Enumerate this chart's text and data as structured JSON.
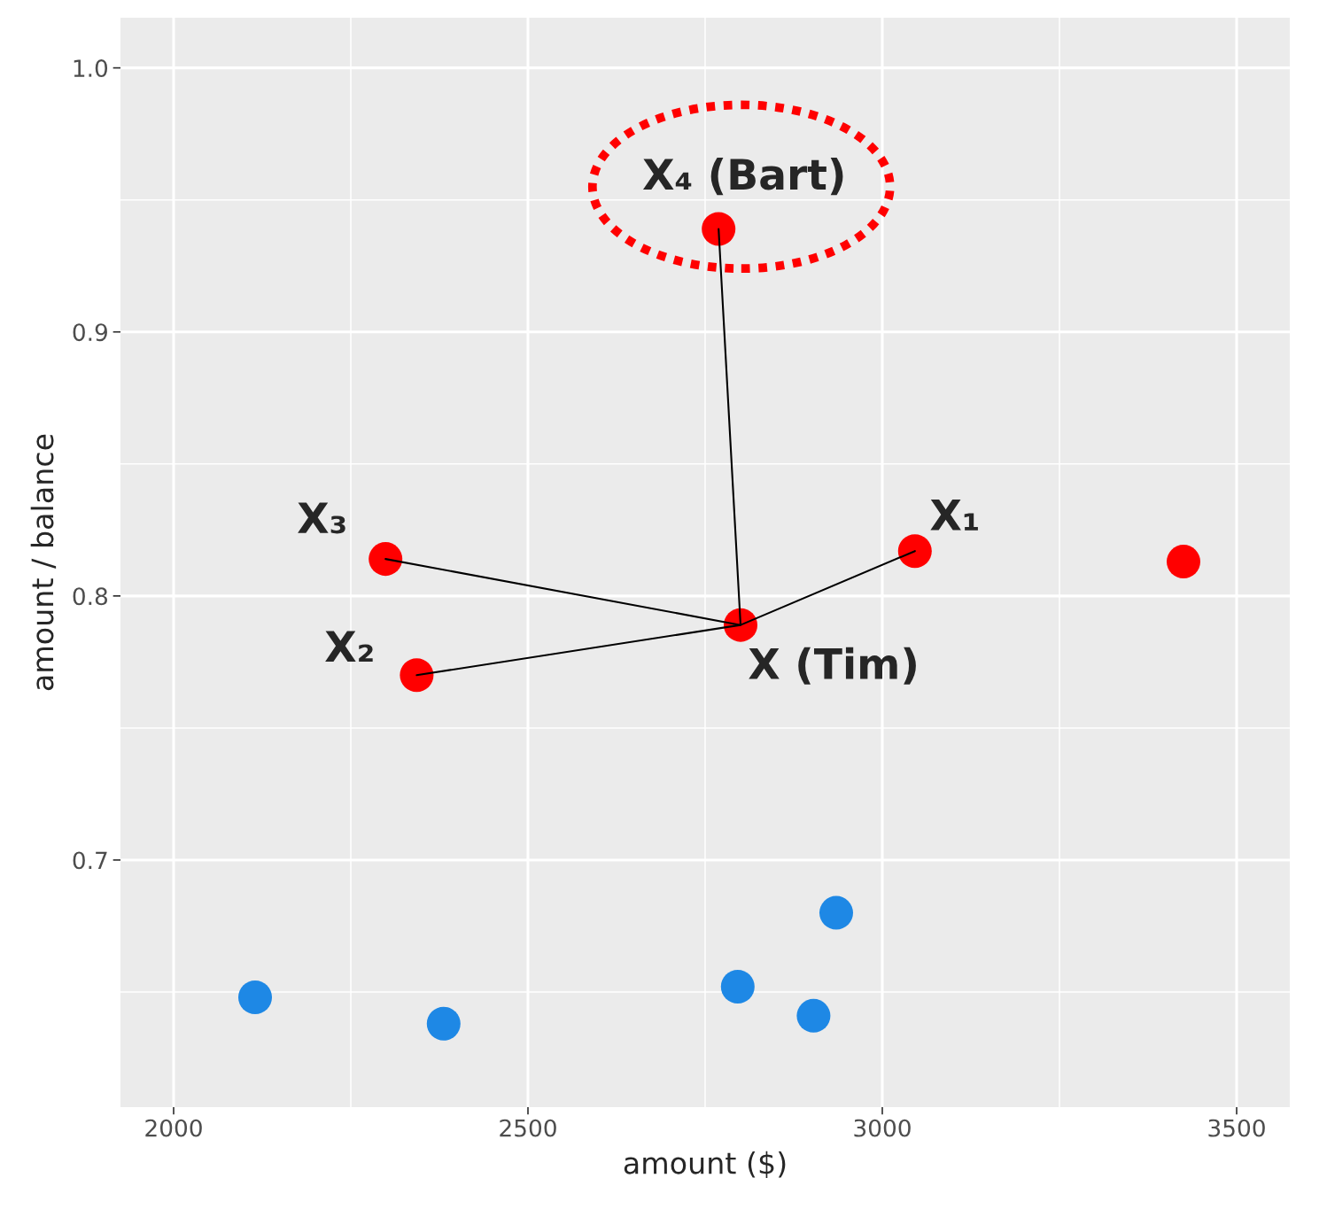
{
  "chart_data": {
    "type": "scatter",
    "xlabel": "amount ($)",
    "ylabel": "amount / balance",
    "xlim": [
      1925,
      3575
    ],
    "ylim": [
      0.6064,
      1.019
    ],
    "xticks": [
      2000,
      2500,
      3000,
      3500
    ],
    "yticks": [
      0.7,
      0.8,
      0.9,
      {
        "value": 1.0,
        "label": "1.0"
      }
    ],
    "grid": true,
    "series": [
      {
        "type": "line",
        "marker": "none",
        "color": "#000000",
        "x": [
          2299,
          2800,
          2769
        ],
        "values": [
          0.814,
          0.789,
          0.939
        ]
      },
      {
        "type": "line",
        "marker": "none",
        "color": "#000000",
        "x": [
          2343,
          2800,
          3046
        ],
        "values": [
          0.77,
          0.789,
          0.817
        ]
      },
      {
        "marker": "circle",
        "color": "#ff0000",
        "x": [
          2769,
          2800,
          3046,
          2343,
          2299,
          3425
        ],
        "values": [
          0.939,
          0.789,
          0.817,
          0.77,
          0.814,
          0.813
        ]
      },
      {
        "marker": "circle",
        "color": "#1e88e5",
        "x": [
          2115,
          2381,
          2796,
          2903,
          2935
        ],
        "values": [
          0.648,
          0.638,
          0.652,
          0.641,
          0.68
        ]
      }
    ],
    "annotations": [
      {
        "text": "X₄ (Bart)",
        "x": 2769,
        "y": 0.939
      },
      {
        "text": "X (Tim)",
        "x": 2800,
        "y": 0.789
      },
      {
        "text": "X₁",
        "x": 3046,
        "y": 0.817
      },
      {
        "text": "X₂",
        "x": 2343,
        "y": 0.77
      },
      {
        "text": "X₃",
        "x": 2299,
        "y": 0.814
      }
    ]
  }
}
